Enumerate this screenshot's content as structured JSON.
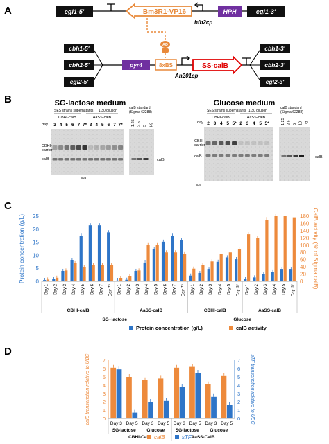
{
  "panelA": {
    "label": "A",
    "top": {
      "left_box": "egl1-5'",
      "promoter_label": "hfb2cp",
      "gene": "Bm3R1-VP16",
      "marker": "HPH",
      "right_box": "egl1-3'",
      "ad_badge": "AD"
    },
    "bottom": {
      "left_boxes": [
        "cbh1-5'",
        "cbh2-5'",
        "egl2-5'"
      ],
      "right_boxes": [
        "cbh1-3'",
        "cbh2-3'",
        "egl2-3'"
      ],
      "marker": "pyr4",
      "bs": "8xBS",
      "promoter_label": "An201cp",
      "gene": "SS-calB"
    }
  },
  "panelB": {
    "label": "B",
    "left": {
      "title": "SG-lactose medium",
      "supernatants": "SES strains supernatants",
      "dilution": "1:30 dilution",
      "standard": [
        "calB standard",
        "(Sigma 62288)"
      ],
      "groups": [
        "CBHI-calB",
        "AaSS-calB"
      ],
      "day_label": "day",
      "days": [
        "3",
        "4",
        "5",
        "6",
        "7",
        "7*",
        "3",
        "4",
        "5",
        "6",
        "7",
        "7*"
      ],
      "std": [
        "1.25",
        "2.5",
        "5"
      ],
      "ug": "µg",
      "bands_left": [
        "CBHI-",
        "carrier",
        "calB"
      ],
      "band_right": "calB",
      "kda": "kDa"
    },
    "right": {
      "title": "Glucose medium",
      "supernatants": "SES strains supernatants",
      "dilution": "1:30 dilution",
      "standard": [
        "calB standard",
        "(Sigma 62288)"
      ],
      "groups": [
        "CBHI-calB",
        "AaSS-calB"
      ],
      "day_label": "day",
      "days": [
        "2",
        "3",
        "4",
        "5",
        "5*",
        "2",
        "3",
        "4",
        "5",
        "5*"
      ],
      "std": [
        "1.25",
        "2.5",
        "5",
        "10"
      ],
      "ug": "µg",
      "bands_left": [
        "CBHI-",
        "carrier",
        "calB"
      ],
      "band_right": "calB",
      "kda": "kDa"
    }
  },
  "panelC_text": {
    "label": "C",
    "ylabel_left": "Protein concentration (g/L)",
    "ylabel_right": "CalB activity (% of Sigma calB)",
    "groups": [
      "CBHI-calB",
      "AaSS-calB",
      "CBHI-calB",
      "AaSS-calB"
    ],
    "media": [
      "SG+lactose",
      "Glucose"
    ],
    "legend": [
      "Protein concentration (g/L)",
      "calB activity"
    ]
  },
  "panelD_text": {
    "label": "D",
    "ylabel_left": "calB transcription relative to UBC",
    "ylabel_right": "sTF transcription relative to UBC",
    "legend": [
      "calB",
      "sTF"
    ]
  },
  "chart_data": [
    {
      "type": "bar",
      "categories": [
        "Day 1",
        "Day 2",
        "Day 3",
        "Day 4",
        "Day 5",
        "Day 6",
        "Day 7",
        "Day 7*",
        "Day 1",
        "Day 2",
        "Day 3",
        "Day 4",
        "Day 5",
        "Day 6",
        "Day 7",
        "Day 7*",
        "Day 1",
        "Day 2",
        "Day 3",
        "Day 4",
        "Day 5",
        "Day 5*",
        "Day 1",
        "Day 2",
        "Day 3",
        "Day 4",
        "Day 5",
        "Day 5*"
      ],
      "series": [
        {
          "name": "Protein concentration (g/L)",
          "axis": "left",
          "values": [
            0.5,
            0.8,
            4,
            8,
            17.5,
            21.5,
            21.5,
            18.8,
            0.3,
            0.6,
            4,
            7.2,
            12.5,
            15.2,
            17.5,
            15.8,
            2.2,
            3.2,
            4.5,
            7.5,
            9.2,
            8.5,
            0.8,
            1.5,
            2.8,
            3.5,
            4.5,
            4.5
          ]
        },
        {
          "name": "calB activity",
          "axis": "right",
          "values": [
            5,
            10,
            30,
            50,
            40,
            45,
            45,
            45,
            8,
            15,
            30,
            100,
            100,
            80,
            80,
            75,
            35,
            45,
            55,
            75,
            80,
            90,
            130,
            120,
            170,
            180,
            180,
            175
          ]
        }
      ],
      "ylim_left": [
        0,
        25
      ],
      "ylim_right": [
        0,
        180
      ],
      "yticks_left": [
        0,
        5,
        10,
        15,
        20,
        25
      ],
      "yticks_right": [
        0,
        20,
        40,
        60,
        80,
        100,
        120,
        140,
        160,
        180
      ]
    },
    {
      "type": "bar",
      "categories": [
        "Day 3",
        "Day 5",
        "Day 3",
        "Day 5",
        "Day 3",
        "Day 5",
        "Day 3",
        "Day 5"
      ],
      "group_labels": [
        "SG-lactose",
        "Glucose",
        "SG-lactose",
        "Glucose"
      ],
      "strain_labels": [
        "CBHI-CalB",
        "AaSS-CalB"
      ],
      "series": [
        {
          "name": "calB",
          "axis": "left",
          "values": [
            6.1,
            5.0,
            4.6,
            4.8,
            6.1,
            6.2,
            4.1,
            5.1
          ]
        },
        {
          "name": "sTF",
          "axis": "right",
          "values": [
            5.9,
            0.7,
            2.0,
            2.1,
            3.8,
            5.5,
            2.6,
            1.6
          ]
        }
      ],
      "ylim_left": [
        0,
        7
      ],
      "ylim_right": [
        0,
        7
      ],
      "yticks_left": [
        0,
        1,
        2,
        3,
        4,
        5,
        6,
        7
      ],
      "yticks_right": [
        0,
        1,
        2,
        3,
        4,
        5,
        6,
        7
      ]
    }
  ]
}
